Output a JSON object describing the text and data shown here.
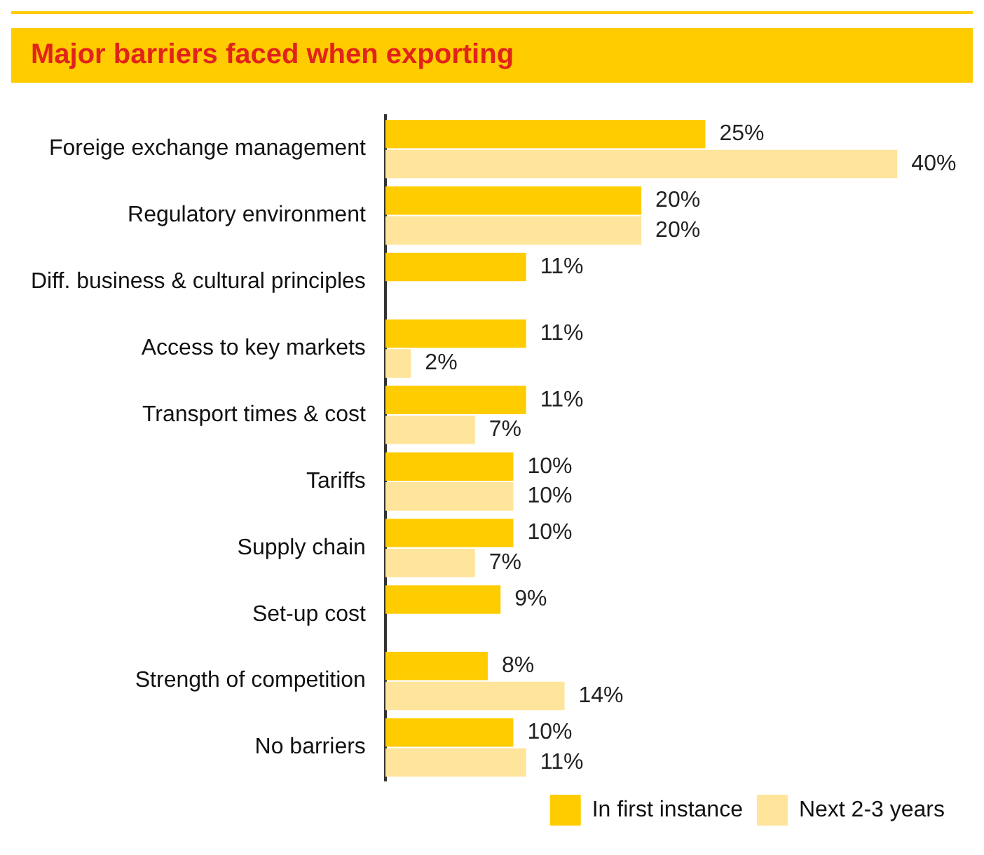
{
  "chart_data": {
    "type": "bar",
    "orientation": "horizontal",
    "title": "Major barriers faced when exporting",
    "categories": [
      "Foreige exchange management",
      "Regulatory environment",
      "Diff. business & cultural principles",
      "Access to key markets",
      "Transport times & cost",
      "Tariffs",
      "Supply chain",
      "Set-up cost",
      "Strength of competition",
      "No barriers"
    ],
    "series": [
      {
        "name": "In first instance",
        "color": "#ffcc00",
        "values": [
          25,
          20,
          11,
          11,
          11,
          10,
          10,
          9,
          8,
          10
        ],
        "value_labels": [
          "25%",
          "20%",
          "11%",
          "11%",
          "11%",
          "10%",
          "10%",
          "9%",
          "8%",
          "10%"
        ]
      },
      {
        "name": "Next 2-3 years",
        "color": "#ffe49c",
        "values": [
          40,
          20,
          null,
          2,
          7,
          10,
          7,
          null,
          14,
          11
        ],
        "value_labels": [
          "40%",
          "20%",
          null,
          "2%",
          "7%",
          "10%",
          "7%",
          null,
          "14%",
          "11%"
        ]
      }
    ],
    "legend": "bottom right",
    "grid": false
  }
}
